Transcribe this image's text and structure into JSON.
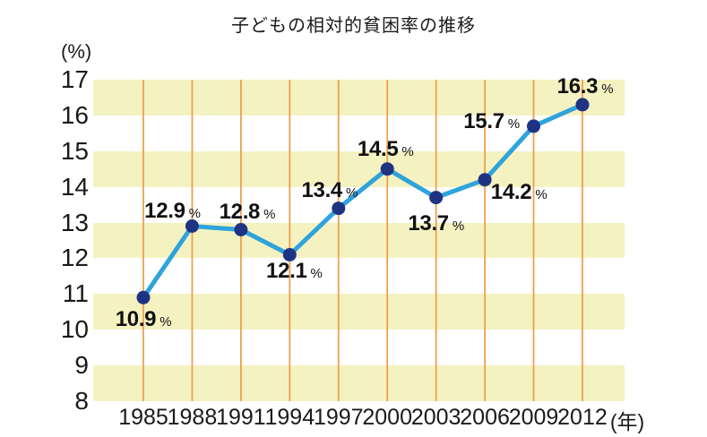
{
  "title": "子どもの相対的貧困率の推移",
  "axis": {
    "y_unit_label": "(%)",
    "x_unit_label": "(年)"
  },
  "chart_data": {
    "type": "line",
    "title": "子どもの相対的貧困率の推移",
    "categories": [
      "1985",
      "1988",
      "1991",
      "1994",
      "1997",
      "2000",
      "2003",
      "2006",
      "2009",
      "2012"
    ],
    "values": [
      10.9,
      12.9,
      12.8,
      12.1,
      13.4,
      14.5,
      13.7,
      14.2,
      15.7,
      16.3
    ],
    "value_labels": [
      "10.9",
      "12.9",
      "12.8",
      "12.1",
      "13.4",
      "14.5",
      "13.7",
      "14.2",
      "15.7",
      "16.3"
    ],
    "unit": "%",
    "xlabel": "(年)",
    "ylabel": "(%)",
    "ylim": [
      8,
      17
    ],
    "yticks": [
      17,
      16,
      15,
      14,
      13,
      12,
      11,
      10,
      9,
      8
    ],
    "grid": "vertical orange gridlines at each year; horizontal pale-yellow bands on alternating 1pt rows (8-9, 10-11, 12-13, 14-15, 16-17)",
    "legend": "none",
    "colors": {
      "line": "#2FA3DC",
      "point": "#1E3483",
      "band": "#F5F2C2",
      "gridline": "#EDA14D",
      "text": "#1A1A1A",
      "background": "#FFFFFF"
    }
  }
}
